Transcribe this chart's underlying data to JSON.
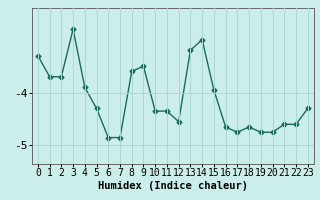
{
  "x": [
    0,
    1,
    2,
    3,
    4,
    5,
    6,
    7,
    8,
    9,
    10,
    11,
    12,
    13,
    14,
    15,
    16,
    17,
    18,
    19,
    20,
    21,
    22,
    23
  ],
  "y": [
    -3.3,
    -3.7,
    -3.7,
    -2.8,
    -3.9,
    -4.3,
    -4.85,
    -4.85,
    -3.6,
    -3.5,
    -4.35,
    -4.35,
    -4.55,
    -3.2,
    -3.0,
    -3.95,
    -4.65,
    -4.75,
    -4.65,
    -4.75,
    -4.75,
    -4.6,
    -4.6,
    -4.3
  ],
  "xlabel": "Humidex (Indice chaleur)",
  "yticks": [
    -5,
    -4
  ],
  "ylim": [
    -5.35,
    -2.4
  ],
  "xlim": [
    -0.5,
    23.5
  ],
  "line_color": "#1a6b5a",
  "marker": "D",
  "marker_size": 2.5,
  "bg_color": "#cceeea",
  "grid_color": "#aad8d3",
  "xlabel_fontsize": 7.5,
  "tick_fontsize": 7
}
